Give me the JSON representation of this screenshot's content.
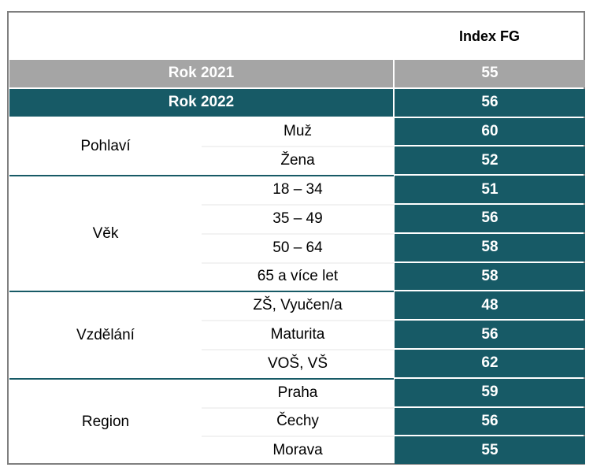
{
  "header": {
    "value_column": "Index FG"
  },
  "totals": [
    {
      "label": "Rok 2021",
      "value": "55"
    },
    {
      "label": "Rok 2022",
      "value": "56"
    }
  ],
  "groups": [
    {
      "label": "Pohlaví",
      "rows": [
        {
          "label": "Muž",
          "value": "60"
        },
        {
          "label": "Žena",
          "value": "52"
        }
      ]
    },
    {
      "label": "Věk",
      "rows": [
        {
          "label": "18 – 34",
          "value": "51"
        },
        {
          "label": "35 – 49",
          "value": "56"
        },
        {
          "label": "50 – 64",
          "value": "58"
        },
        {
          "label": "65 a více let",
          "value": "58"
        }
      ]
    },
    {
      "label": "Vzdělání",
      "rows": [
        {
          "label": "ZŠ, Vyučen/a",
          "value": "48"
        },
        {
          "label": "Maturita",
          "value": "56"
        },
        {
          "label": "VOŠ, VŠ",
          "value": "62"
        }
      ]
    },
    {
      "label": "Region",
      "rows": [
        {
          "label": "Praha",
          "value": "59"
        },
        {
          "label": "Čechy",
          "value": "56"
        },
        {
          "label": "Morava",
          "value": "55"
        }
      ]
    }
  ],
  "chart_data": {
    "type": "table",
    "columns": [
      "Index FG"
    ],
    "rows": [
      {
        "category": "Rok 2021",
        "value": 55
      },
      {
        "category": "Rok 2022",
        "value": 56
      },
      {
        "group": "Pohlaví",
        "category": "Muž",
        "value": 60
      },
      {
        "group": "Pohlaví",
        "category": "Žena",
        "value": 52
      },
      {
        "group": "Věk",
        "category": "18 – 34",
        "value": 51
      },
      {
        "group": "Věk",
        "category": "35 – 49",
        "value": 56
      },
      {
        "group": "Věk",
        "category": "50 – 64",
        "value": 58
      },
      {
        "group": "Věk",
        "category": "65 a více let",
        "value": 58
      },
      {
        "group": "Vzdělání",
        "category": "ZŠ, Vyučen/a",
        "value": 48
      },
      {
        "group": "Vzdělání",
        "category": "Maturita",
        "value": 56
      },
      {
        "group": "Vzdělání",
        "category": "VOŠ, VŠ",
        "value": 62
      },
      {
        "group": "Region",
        "category": "Praha",
        "value": 59
      },
      {
        "group": "Region",
        "category": "Čechy",
        "value": 56
      },
      {
        "group": "Region",
        "category": "Morava",
        "value": 55
      }
    ],
    "colors": {
      "header_2021": "#a5a5a5",
      "header_2022": "#175a66",
      "value_cells": "#175a66"
    }
  }
}
